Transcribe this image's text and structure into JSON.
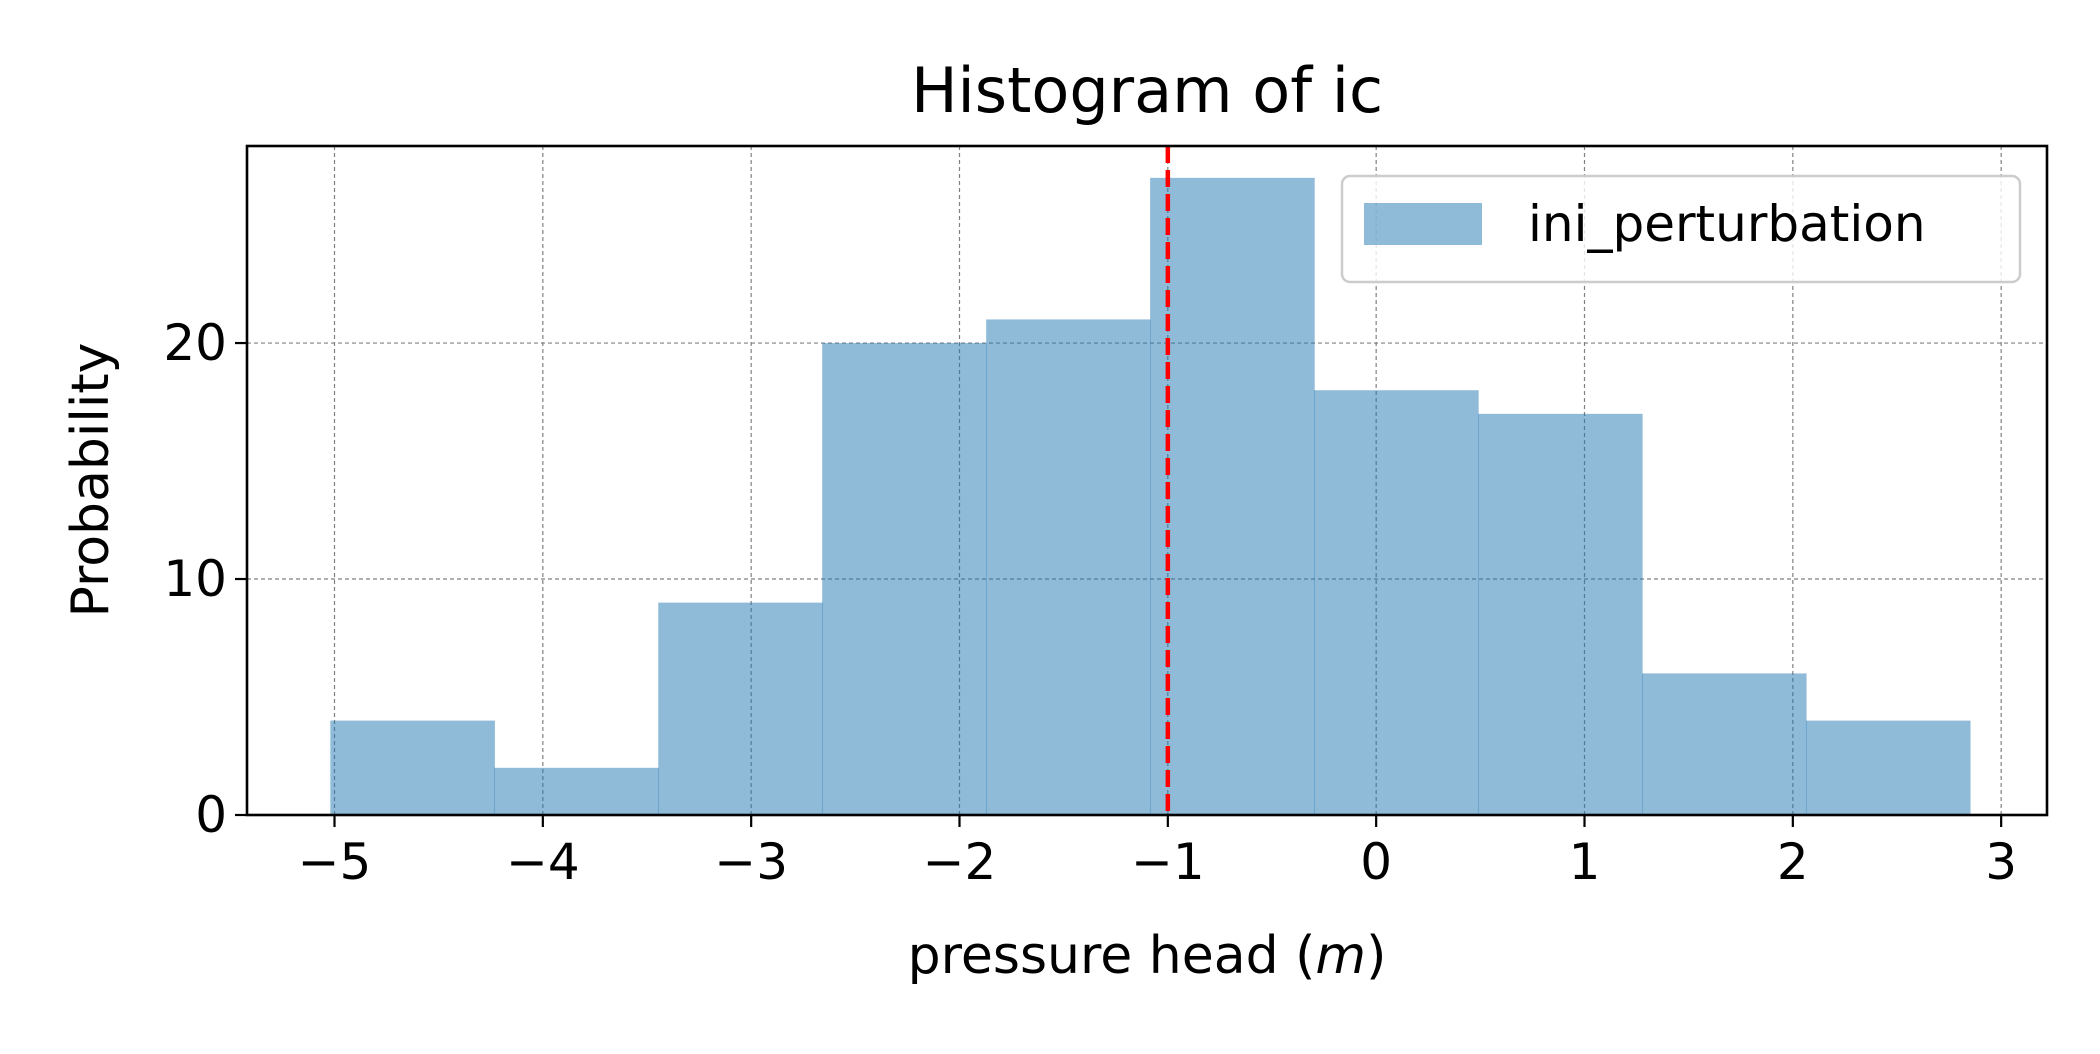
{
  "chart_data": {
    "type": "bar",
    "title": "Histogram of ic",
    "xlabel_text": "pressure head (",
    "xlabel_unit": "m",
    "xlabel_close": ")",
    "ylabel": "Probability",
    "xlim": [
      -5.42,
      3.22
    ],
    "ylim": [
      0,
      28.35
    ],
    "x_ticks": [
      -5,
      -4,
      -3,
      -2,
      -1,
      0,
      1,
      2,
      3
    ],
    "x_tick_labels": [
      "−5",
      "−4",
      "−3",
      "−2",
      "−1",
      "0",
      "1",
      "2",
      "3"
    ],
    "y_ticks": [
      0,
      10,
      20
    ],
    "y_tick_labels": [
      "0",
      "10",
      "20"
    ],
    "grid": true,
    "legend_position": "top-right",
    "series": [
      {
        "name": "ini_perturbation",
        "color": "#1f77b4",
        "alpha": 0.5,
        "bin_edges": [
          -5.02,
          -4.233,
          -3.446,
          -2.659,
          -1.872,
          -1.085,
          -0.298,
          0.489,
          1.276,
          2.063,
          2.85
        ],
        "counts": [
          4,
          2,
          9,
          20,
          21,
          27,
          18,
          17,
          6,
          4
        ]
      }
    ],
    "reference_line": {
      "x": -1.0,
      "color": "#ff0000",
      "style": "dashed"
    }
  }
}
